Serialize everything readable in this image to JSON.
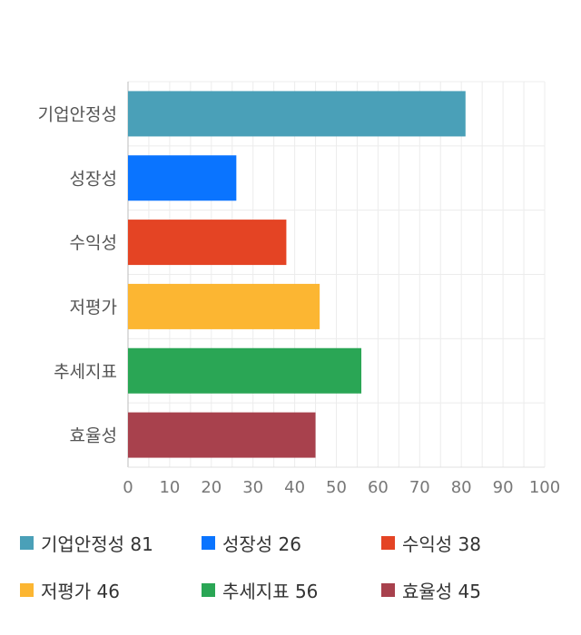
{
  "chart_data": {
    "type": "bar",
    "orientation": "horizontal",
    "categories": [
      "기업안정성",
      "성장성",
      "수익성",
      "저평가",
      "추세지표",
      "효율성"
    ],
    "values": [
      81,
      26,
      38,
      46,
      56,
      45
    ],
    "colors": [
      "#4aa0b8",
      "#0a74ff",
      "#e44424",
      "#fcb632",
      "#2aa655",
      "#a8414d"
    ],
    "xlim": [
      0,
      100
    ],
    "xticks": [
      0,
      10,
      20,
      30,
      40,
      50,
      60,
      70,
      80,
      90,
      100
    ],
    "grid": true,
    "legend_position": "bottom",
    "title": "",
    "xlabel": "",
    "ylabel": ""
  },
  "legend": {
    "items": [
      {
        "label": "기업안정성 81",
        "color": "#4aa0b8"
      },
      {
        "label": "성장성 26",
        "color": "#0a74ff"
      },
      {
        "label": "수익성 38",
        "color": "#e44424"
      },
      {
        "label": "저평가 46",
        "color": "#fcb632"
      },
      {
        "label": "추세지표 56",
        "color": "#2aa655"
      },
      {
        "label": "효율성 45",
        "color": "#a8414d"
      }
    ]
  }
}
